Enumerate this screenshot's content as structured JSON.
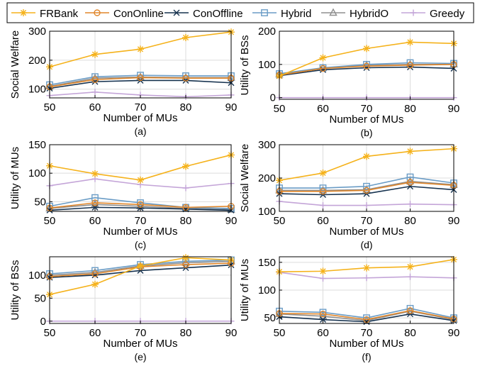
{
  "legend": {
    "entries": [
      {
        "name": "FRBank",
        "color": "#F5B21B",
        "marker": "asterisk"
      },
      {
        "name": "ConOnline",
        "color": "#E0862A",
        "marker": "circle"
      },
      {
        "name": "ConOffline",
        "color": "#16324F",
        "marker": "x"
      },
      {
        "name": "Hybrid",
        "color": "#6A9CC6",
        "marker": "square"
      },
      {
        "name": "HybridO",
        "color": "#8F8F8F",
        "marker": "triangle"
      },
      {
        "name": "Greedy",
        "color": "#C4A5D8",
        "marker": "plus"
      }
    ]
  },
  "chart_data": [
    {
      "type": "line",
      "caption": "(a)",
      "xlabel": "Number of MUs",
      "ylabel": "Social Welfare",
      "x": [
        50,
        60,
        70,
        80,
        90
      ],
      "xticks": [
        50,
        60,
        70,
        80,
        90
      ],
      "ylim": [
        70,
        300
      ],
      "yticks": [
        100,
        200,
        300
      ],
      "grid": true,
      "series": [
        {
          "name": "FRBank",
          "values": [
            177,
            220,
            238,
            278,
            297
          ]
        },
        {
          "name": "ConOnline",
          "values": [
            108,
            133,
            140,
            138,
            138
          ]
        },
        {
          "name": "ConOffline",
          "values": [
            103,
            126,
            130,
            130,
            122
          ]
        },
        {
          "name": "Hybrid",
          "values": [
            115,
            143,
            148,
            146,
            146
          ]
        },
        {
          "name": "HybridO",
          "values": [
            110,
            138,
            142,
            140,
            140
          ]
        },
        {
          "name": "Greedy",
          "values": [
            78,
            90,
            80,
            74,
            80
          ]
        }
      ]
    },
    {
      "type": "line",
      "caption": "(b)",
      "xlabel": "Number of MUs",
      "ylabel": "Utility of BSs",
      "x": [
        50,
        60,
        70,
        80,
        90
      ],
      "xticks": [
        50,
        60,
        70,
        80,
        90
      ],
      "ylim": [
        -5,
        200
      ],
      "yticks": [
        0,
        100,
        200
      ],
      "grid": true,
      "series": [
        {
          "name": "FRBank",
          "values": [
            65,
            120,
            148,
            167,
            163
          ]
        },
        {
          "name": "ConOnline",
          "values": [
            68,
            88,
            95,
            98,
            100
          ]
        },
        {
          "name": "ConOffline",
          "values": [
            66,
            84,
            90,
            92,
            88
          ]
        },
        {
          "name": "Hybrid",
          "values": [
            72,
            90,
            100,
            105,
            103
          ]
        },
        {
          "name": "HybridO",
          "values": [
            70,
            89,
            97,
            100,
            100
          ]
        },
        {
          "name": "Greedy",
          "values": [
            0,
            0,
            0,
            0,
            0
          ]
        }
      ]
    },
    {
      "type": "line",
      "caption": "(c)",
      "xlabel": "Number of MUs",
      "ylabel": "Utility of MUs",
      "x": [
        50,
        60,
        70,
        80,
        90
      ],
      "xticks": [
        50,
        60,
        70,
        80,
        90
      ],
      "ylim": [
        33,
        150
      ],
      "yticks": [
        50,
        100,
        150
      ],
      "grid": true,
      "series": [
        {
          "name": "FRBank",
          "values": [
            113,
            99,
            88,
            112,
            132
          ]
        },
        {
          "name": "ConOnline",
          "values": [
            39,
            48,
            45,
            40,
            42
          ]
        },
        {
          "name": "ConOffline",
          "values": [
            35,
            40,
            39,
            37,
            35
          ]
        },
        {
          "name": "Hybrid",
          "values": [
            42,
            57,
            48,
            40,
            38
          ]
        },
        {
          "name": "HybridO",
          "values": [
            38,
            45,
            42,
            38,
            36
          ]
        },
        {
          "name": "Greedy",
          "values": [
            78,
            90,
            80,
            74,
            82
          ]
        }
      ]
    },
    {
      "type": "line",
      "caption": "(d)",
      "xlabel": "Number of MUs",
      "ylabel": "Social Welfare",
      "x": [
        50,
        60,
        70,
        80,
        90
      ],
      "xticks": [
        50,
        60,
        70,
        80,
        90
      ],
      "ylim": [
        100,
        300
      ],
      "yticks": [
        100,
        200,
        300
      ],
      "grid": true,
      "series": [
        {
          "name": "FRBank",
          "values": [
            193,
            215,
            265,
            280,
            288
          ]
        },
        {
          "name": "ConOnline",
          "values": [
            160,
            160,
            163,
            187,
            178
          ]
        },
        {
          "name": "ConOffline",
          "values": [
            153,
            150,
            153,
            175,
            165
          ]
        },
        {
          "name": "Hybrid",
          "values": [
            170,
            170,
            175,
            203,
            185
          ]
        },
        {
          "name": "HybridO",
          "values": [
            163,
            163,
            165,
            190,
            180
          ]
        },
        {
          "name": "Greedy",
          "values": [
            130,
            118,
            118,
            122,
            120
          ]
        }
      ]
    },
    {
      "type": "line",
      "caption": "(e)",
      "xlabel": "Number of MUs",
      "ylabel": "Utility of BSs",
      "x": [
        50,
        60,
        70,
        80,
        90
      ],
      "xticks": [
        50,
        60,
        70,
        80,
        90
      ],
      "ylim": [
        -5,
        140
      ],
      "yticks": [
        0,
        50,
        100
      ],
      "grid": true,
      "series": [
        {
          "name": "FRBank",
          "values": [
            58,
            80,
            120,
            138,
            133
          ]
        },
        {
          "name": "ConOnline",
          "values": [
            97,
            103,
            118,
            123,
            126
          ]
        },
        {
          "name": "ConOffline",
          "values": [
            95,
            100,
            110,
            116,
            122
          ]
        },
        {
          "name": "Hybrid",
          "values": [
            103,
            110,
            123,
            130,
            133
          ]
        },
        {
          "name": "HybridO",
          "values": [
            100,
            106,
            120,
            127,
            130
          ]
        },
        {
          "name": "Greedy",
          "values": [
            0,
            0,
            0,
            0,
            0
          ]
        }
      ]
    },
    {
      "type": "line",
      "caption": "(f)",
      "xlabel": "Number of MUs",
      "ylabel": "Utility of MUs",
      "x": [
        50,
        60,
        70,
        80,
        90
      ],
      "xticks": [
        50,
        60,
        70,
        80,
        90
      ],
      "ylim": [
        40,
        160
      ],
      "yticks": [
        50,
        100,
        150
      ],
      "grid": true,
      "series": [
        {
          "name": "FRBank",
          "values": [
            133,
            134,
            140,
            142,
            155
          ]
        },
        {
          "name": "ConOnline",
          "values": [
            58,
            57,
            47,
            63,
            48
          ]
        },
        {
          "name": "ConOffline",
          "values": [
            52,
            47,
            43,
            57,
            45
          ]
        },
        {
          "name": "Hybrid",
          "values": [
            62,
            60,
            50,
            67,
            50
          ]
        },
        {
          "name": "HybridO",
          "values": [
            57,
            53,
            45,
            62,
            47
          ]
        },
        {
          "name": "Greedy",
          "values": [
            132,
            121,
            122,
            124,
            122
          ]
        }
      ]
    }
  ]
}
